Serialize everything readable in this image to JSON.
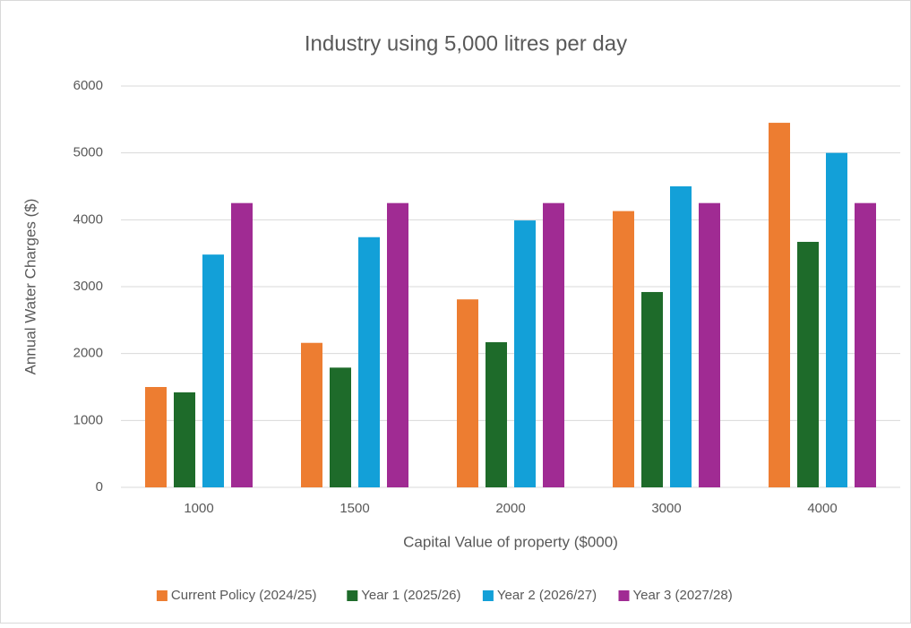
{
  "chart_data": {
    "type": "bar",
    "title": "Industry using 5,000 litres per day",
    "x_label": "Capital Value of property ($000)",
    "y_label": "Annual Water Charges ($)",
    "categories": [
      "1000",
      "1500",
      "2000",
      "3000",
      "4000"
    ],
    "series": [
      {
        "name": "Current Policy (2024/25)",
        "color": "#ed7d31",
        "values": [
          1500,
          2160,
          2810,
          4130,
          5450
        ]
      },
      {
        "name": "Year 1 (2025/26)",
        "color": "#1e6b2a",
        "values": [
          1420,
          1790,
          2170,
          2920,
          3670
        ]
      },
      {
        "name": "Year 2 (2026/27)",
        "color": "#13a0d8",
        "values": [
          3480,
          3740,
          3990,
          4500,
          5000
        ]
      },
      {
        "name": "Year 3 (2027/28)",
        "color": "#a02b93",
        "values": [
          4250,
          4250,
          4250,
          4250,
          4250
        ]
      }
    ],
    "ylim": [
      0,
      6000
    ],
    "yticks": [
      0,
      1000,
      2000,
      3000,
      4000,
      5000,
      6000
    ],
    "grid": true,
    "legend": "bottom"
  }
}
